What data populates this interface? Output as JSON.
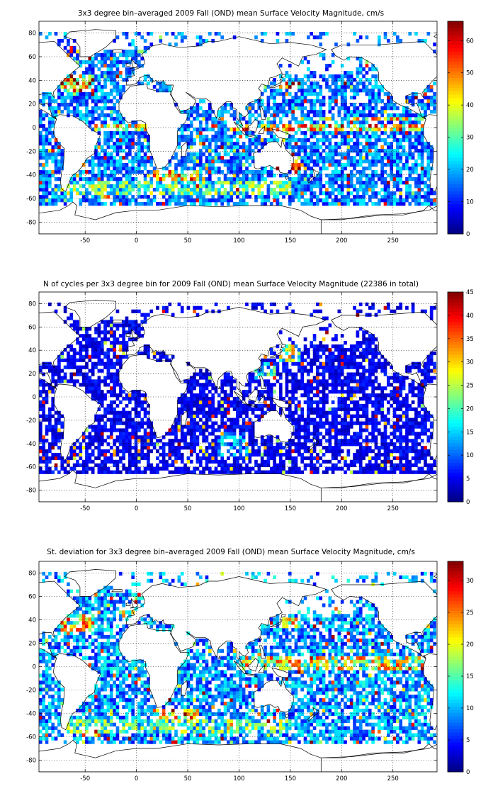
{
  "chart_data": [
    {
      "type": "heatmap",
      "title": "3x3 degree bin–averaged 2009 Fall (OND) mean Surface Velocity Magnitude, cm/s",
      "xlabel": "",
      "ylabel": "",
      "xlim": [
        -95,
        293
      ],
      "ylim": [
        -90,
        90
      ],
      "x_ticks": [
        "-50",
        "0",
        "50",
        "100",
        "150",
        "200",
        "250"
      ],
      "y_ticks": [
        "80",
        "60",
        "40",
        "20",
        "0",
        "-20",
        "-40",
        "-60",
        "-80"
      ],
      "grid": "dotted",
      "bin_size_deg": 3,
      "colorbar": {
        "min": 0,
        "max": 66,
        "ticks": [
          "60",
          "50",
          "40",
          "30",
          "20",
          "10",
          "0"
        ],
        "colormap": "jet",
        "placement": "right"
      },
      "fields": {
        "base": 16,
        "zones": [
          {
            "lat": [
              -3,
              4
            ],
            "lon": [
              -40,
              15
            ],
            "value": 38
          },
          {
            "lat": [
              -3,
              4
            ],
            "lon": [
              90,
              280
            ],
            "value": 42
          },
          {
            "lat": [
              5,
              10
            ],
            "lon": [
              110,
              280
            ],
            "value": 36
          },
          {
            "lat": [
              30,
              45
            ],
            "lon": [
              -75,
              -40
            ],
            "value": 45
          },
          {
            "lat": [
              33,
              40
            ],
            "lon": [
              140,
              160
            ],
            "value": 50
          },
          {
            "lat": [
              -44,
              -36
            ],
            "lon": [
              15,
              60
            ],
            "value": 40
          },
          {
            "lat": [
              -58,
              -46
            ],
            "lon": [
              -70,
              150
            ],
            "value": 28
          },
          {
            "lat": [
              -36,
              -25
            ],
            "lon": [
              150,
              160
            ],
            "value": 44
          }
        ]
      }
    },
    {
      "type": "heatmap",
      "title": "N of cycles per 3x3 degree bin for 2009 Fall (OND) mean Surface Velocity Magnitude (22386 in total)",
      "xlabel": "",
      "ylabel": "",
      "xlim": [
        -95,
        293
      ],
      "ylim": [
        -90,
        90
      ],
      "x_ticks": [
        "-50",
        "0",
        "50",
        "100",
        "150",
        "200",
        "250"
      ],
      "y_ticks": [
        "80",
        "60",
        "40",
        "20",
        "0",
        "-20",
        "-40",
        "-60",
        "-80"
      ],
      "grid": "dotted",
      "bin_size_deg": 3,
      "total_cycles": 22386,
      "colorbar": {
        "min": 0,
        "max": 45,
        "ticks": [
          "45",
          "40",
          "35",
          "30",
          "25",
          "20",
          "15",
          "10",
          "5",
          "0"
        ],
        "colormap": "jet",
        "placement": "right"
      },
      "fields": {
        "base": 5,
        "zones": [
          {
            "lat": [
              30,
              45
            ],
            "lon": [
              140,
              160
            ],
            "value": 22
          },
          {
            "lat": [
              -50,
              -30
            ],
            "lon": [
              80,
              110
            ],
            "value": 12
          },
          {
            "lat": [
              15,
              30
            ],
            "lon": [
              115,
              135
            ],
            "value": 16
          }
        ]
      }
    },
    {
      "type": "heatmap",
      "title": "St. deviation for 3x3 degree bin–averaged 2009 Fall (OND) mean Surface Velocity Magnitude, cm/s",
      "xlabel": "",
      "ylabel": "",
      "xlim": [
        -95,
        293
      ],
      "ylim": [
        -90,
        90
      ],
      "x_ticks": [
        "-50",
        "0",
        "50",
        "100",
        "150",
        "200",
        "250"
      ],
      "y_ticks": [
        "80",
        "60",
        "40",
        "20",
        "0",
        "-20",
        "-40",
        "-60",
        "-80"
      ],
      "grid": "dotted",
      "bin_size_deg": 3,
      "colorbar": {
        "min": 0,
        "max": 33,
        "ticks": [
          "30",
          "25",
          "20",
          "15",
          "10",
          "5",
          "0"
        ],
        "colormap": "jet",
        "placement": "right"
      },
      "fields": {
        "base": 9,
        "zones": [
          {
            "lat": [
              -3,
              10
            ],
            "lon": [
              100,
              280
            ],
            "value": 18
          },
          {
            "lat": [
              30,
              45
            ],
            "lon": [
              -75,
              -40
            ],
            "value": 20
          },
          {
            "lat": [
              33,
              42
            ],
            "lon": [
              140,
              160
            ],
            "value": 26
          },
          {
            "lat": [
              -44,
              -36
            ],
            "lon": [
              15,
              60
            ],
            "value": 22
          },
          {
            "lat": [
              -58,
              -46
            ],
            "lon": [
              -70,
              150
            ],
            "value": 14
          }
        ]
      }
    }
  ]
}
